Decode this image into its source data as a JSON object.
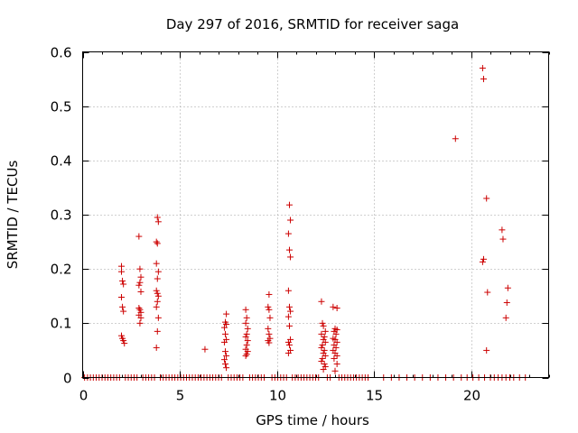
{
  "chart_data": {
    "type": "scatter",
    "title": "Day 297 of 2016, SRMTID for receiver saga",
    "xlabel": "GPS time / hours",
    "ylabel": "SRMTID / TECUs",
    "xlim": [
      0,
      24
    ],
    "ylim": [
      0,
      0.6
    ],
    "xticks": [
      "0",
      "5",
      "10",
      "15",
      "20"
    ],
    "yticks": [
      "0",
      "0.1",
      "0.2",
      "0.3",
      "0.4",
      "0.5",
      "0.6"
    ],
    "grid": true,
    "marker": "plus",
    "color": "#cc0000",
    "series": [
      {
        "name": "SRMTID",
        "points": [
          [
            2.0,
            0.205
          ],
          [
            2.0,
            0.195
          ],
          [
            2.05,
            0.178
          ],
          [
            2.1,
            0.172
          ],
          [
            2.0,
            0.148
          ],
          [
            2.05,
            0.13
          ],
          [
            2.1,
            0.122
          ],
          [
            2.0,
            0.077
          ],
          [
            2.05,
            0.072
          ],
          [
            2.1,
            0.068
          ],
          [
            2.15,
            0.063
          ],
          [
            2.9,
            0.26
          ],
          [
            2.95,
            0.2
          ],
          [
            3.0,
            0.185
          ],
          [
            2.95,
            0.175
          ],
          [
            2.9,
            0.17
          ],
          [
            3.0,
            0.158
          ],
          [
            2.9,
            0.128
          ],
          [
            2.95,
            0.125
          ],
          [
            3.0,
            0.12
          ],
          [
            2.9,
            0.115
          ],
          [
            3.0,
            0.11
          ],
          [
            2.95,
            0.1
          ],
          [
            3.85,
            0.295
          ],
          [
            3.9,
            0.287
          ],
          [
            3.8,
            0.25
          ],
          [
            3.85,
            0.247
          ],
          [
            3.8,
            0.21
          ],
          [
            3.9,
            0.195
          ],
          [
            3.85,
            0.182
          ],
          [
            3.8,
            0.16
          ],
          [
            3.85,
            0.155
          ],
          [
            3.9,
            0.15
          ],
          [
            3.85,
            0.14
          ],
          [
            3.8,
            0.13
          ],
          [
            3.9,
            0.11
          ],
          [
            3.85,
            0.085
          ],
          [
            3.8,
            0.055
          ],
          [
            6.3,
            0.052
          ],
          [
            7.4,
            0.117
          ],
          [
            7.35,
            0.102
          ],
          [
            7.4,
            0.098
          ],
          [
            7.3,
            0.092
          ],
          [
            7.35,
            0.08
          ],
          [
            7.4,
            0.07
          ],
          [
            7.3,
            0.065
          ],
          [
            7.35,
            0.048
          ],
          [
            7.4,
            0.04
          ],
          [
            7.3,
            0.033
          ],
          [
            7.35,
            0.025
          ],
          [
            7.4,
            0.018
          ],
          [
            8.4,
            0.125
          ],
          [
            8.45,
            0.11
          ],
          [
            8.4,
            0.1
          ],
          [
            8.5,
            0.09
          ],
          [
            8.45,
            0.08
          ],
          [
            8.4,
            0.075
          ],
          [
            8.5,
            0.068
          ],
          [
            8.45,
            0.06
          ],
          [
            8.4,
            0.052
          ],
          [
            8.5,
            0.048
          ],
          [
            8.45,
            0.043
          ],
          [
            8.4,
            0.04
          ],
          [
            9.6,
            0.153
          ],
          [
            9.55,
            0.13
          ],
          [
            9.6,
            0.125
          ],
          [
            9.65,
            0.11
          ],
          [
            9.55,
            0.09
          ],
          [
            9.6,
            0.08
          ],
          [
            9.65,
            0.072
          ],
          [
            9.55,
            0.068
          ],
          [
            9.6,
            0.064
          ],
          [
            10.65,
            0.318
          ],
          [
            10.7,
            0.29
          ],
          [
            10.6,
            0.265
          ],
          [
            10.65,
            0.235
          ],
          [
            10.7,
            0.222
          ],
          [
            10.6,
            0.16
          ],
          [
            10.65,
            0.13
          ],
          [
            10.7,
            0.122
          ],
          [
            10.6,
            0.112
          ],
          [
            10.65,
            0.095
          ],
          [
            10.7,
            0.07
          ],
          [
            10.6,
            0.065
          ],
          [
            10.65,
            0.06
          ],
          [
            10.7,
            0.05
          ],
          [
            10.6,
            0.045
          ],
          [
            12.3,
            0.14
          ],
          [
            12.35,
            0.1
          ],
          [
            12.4,
            0.095
          ],
          [
            12.5,
            0.085
          ],
          [
            12.3,
            0.08
          ],
          [
            12.45,
            0.075
          ],
          [
            12.4,
            0.07
          ],
          [
            12.5,
            0.065
          ],
          [
            12.35,
            0.06
          ],
          [
            12.3,
            0.055
          ],
          [
            12.45,
            0.05
          ],
          [
            12.4,
            0.045
          ],
          [
            12.5,
            0.04
          ],
          [
            12.35,
            0.035
          ],
          [
            12.3,
            0.03
          ],
          [
            12.45,
            0.025
          ],
          [
            12.5,
            0.02
          ],
          [
            12.4,
            0.015
          ],
          [
            12.9,
            0.13
          ],
          [
            13.1,
            0.128
          ],
          [
            13.0,
            0.09
          ],
          [
            12.95,
            0.085
          ],
          [
            13.1,
            0.088
          ],
          [
            13.05,
            0.08
          ],
          [
            12.9,
            0.072
          ],
          [
            13.0,
            0.07
          ],
          [
            13.1,
            0.065
          ],
          [
            12.95,
            0.06
          ],
          [
            13.05,
            0.055
          ],
          [
            12.9,
            0.05
          ],
          [
            13.0,
            0.045
          ],
          [
            13.1,
            0.04
          ],
          [
            12.95,
            0.035
          ],
          [
            13.1,
            0.025
          ],
          [
            13.0,
            0.012
          ],
          [
            19.2,
            0.44
          ],
          [
            20.6,
            0.57
          ],
          [
            20.65,
            0.55
          ],
          [
            20.8,
            0.33
          ],
          [
            20.65,
            0.218
          ],
          [
            20.6,
            0.213
          ],
          [
            20.85,
            0.157
          ],
          [
            20.8,
            0.05
          ],
          [
            21.6,
            0.272
          ],
          [
            21.65,
            0.255
          ],
          [
            21.9,
            0.165
          ],
          [
            21.85,
            0.138
          ],
          [
            21.8,
            0.11
          ]
        ],
        "zero_x": [
          0.1,
          0.25,
          0.4,
          0.55,
          0.7,
          0.85,
          1.0,
          1.15,
          1.3,
          1.45,
          1.6,
          1.75,
          1.9,
          2.2,
          2.35,
          2.5,
          2.65,
          2.8,
          3.1,
          3.25,
          3.4,
          3.55,
          3.7,
          4.0,
          4.15,
          4.3,
          4.45,
          4.6,
          4.75,
          4.9,
          5.05,
          5.2,
          5.35,
          5.5,
          5.65,
          5.8,
          5.95,
          6.1,
          6.25,
          6.4,
          6.55,
          6.7,
          6.85,
          7.0,
          7.15,
          7.5,
          7.65,
          7.8,
          7.95,
          8.1,
          8.25,
          8.6,
          8.75,
          8.9,
          9.05,
          9.2,
          9.35,
          9.75,
          9.9,
          10.05,
          10.2,
          10.35,
          10.5,
          10.8,
          10.95,
          11.1,
          11.25,
          11.4,
          11.55,
          11.7,
          11.85,
          12.0,
          12.15,
          12.6,
          12.75,
          13.2,
          13.35,
          13.5,
          13.65,
          13.8,
          13.95,
          14.1,
          14.25,
          14.4,
          14.55,
          14.7,
          15.5,
          15.9,
          16.3,
          16.7,
          17.1,
          17.5,
          17.9,
          18.3,
          18.7,
          19.1,
          19.5,
          19.8,
          20.1,
          20.4,
          20.7,
          21.0,
          21.2,
          21.4,
          21.6,
          21.8,
          22.0,
          22.2,
          22.5,
          22.8
        ]
      }
    ]
  }
}
